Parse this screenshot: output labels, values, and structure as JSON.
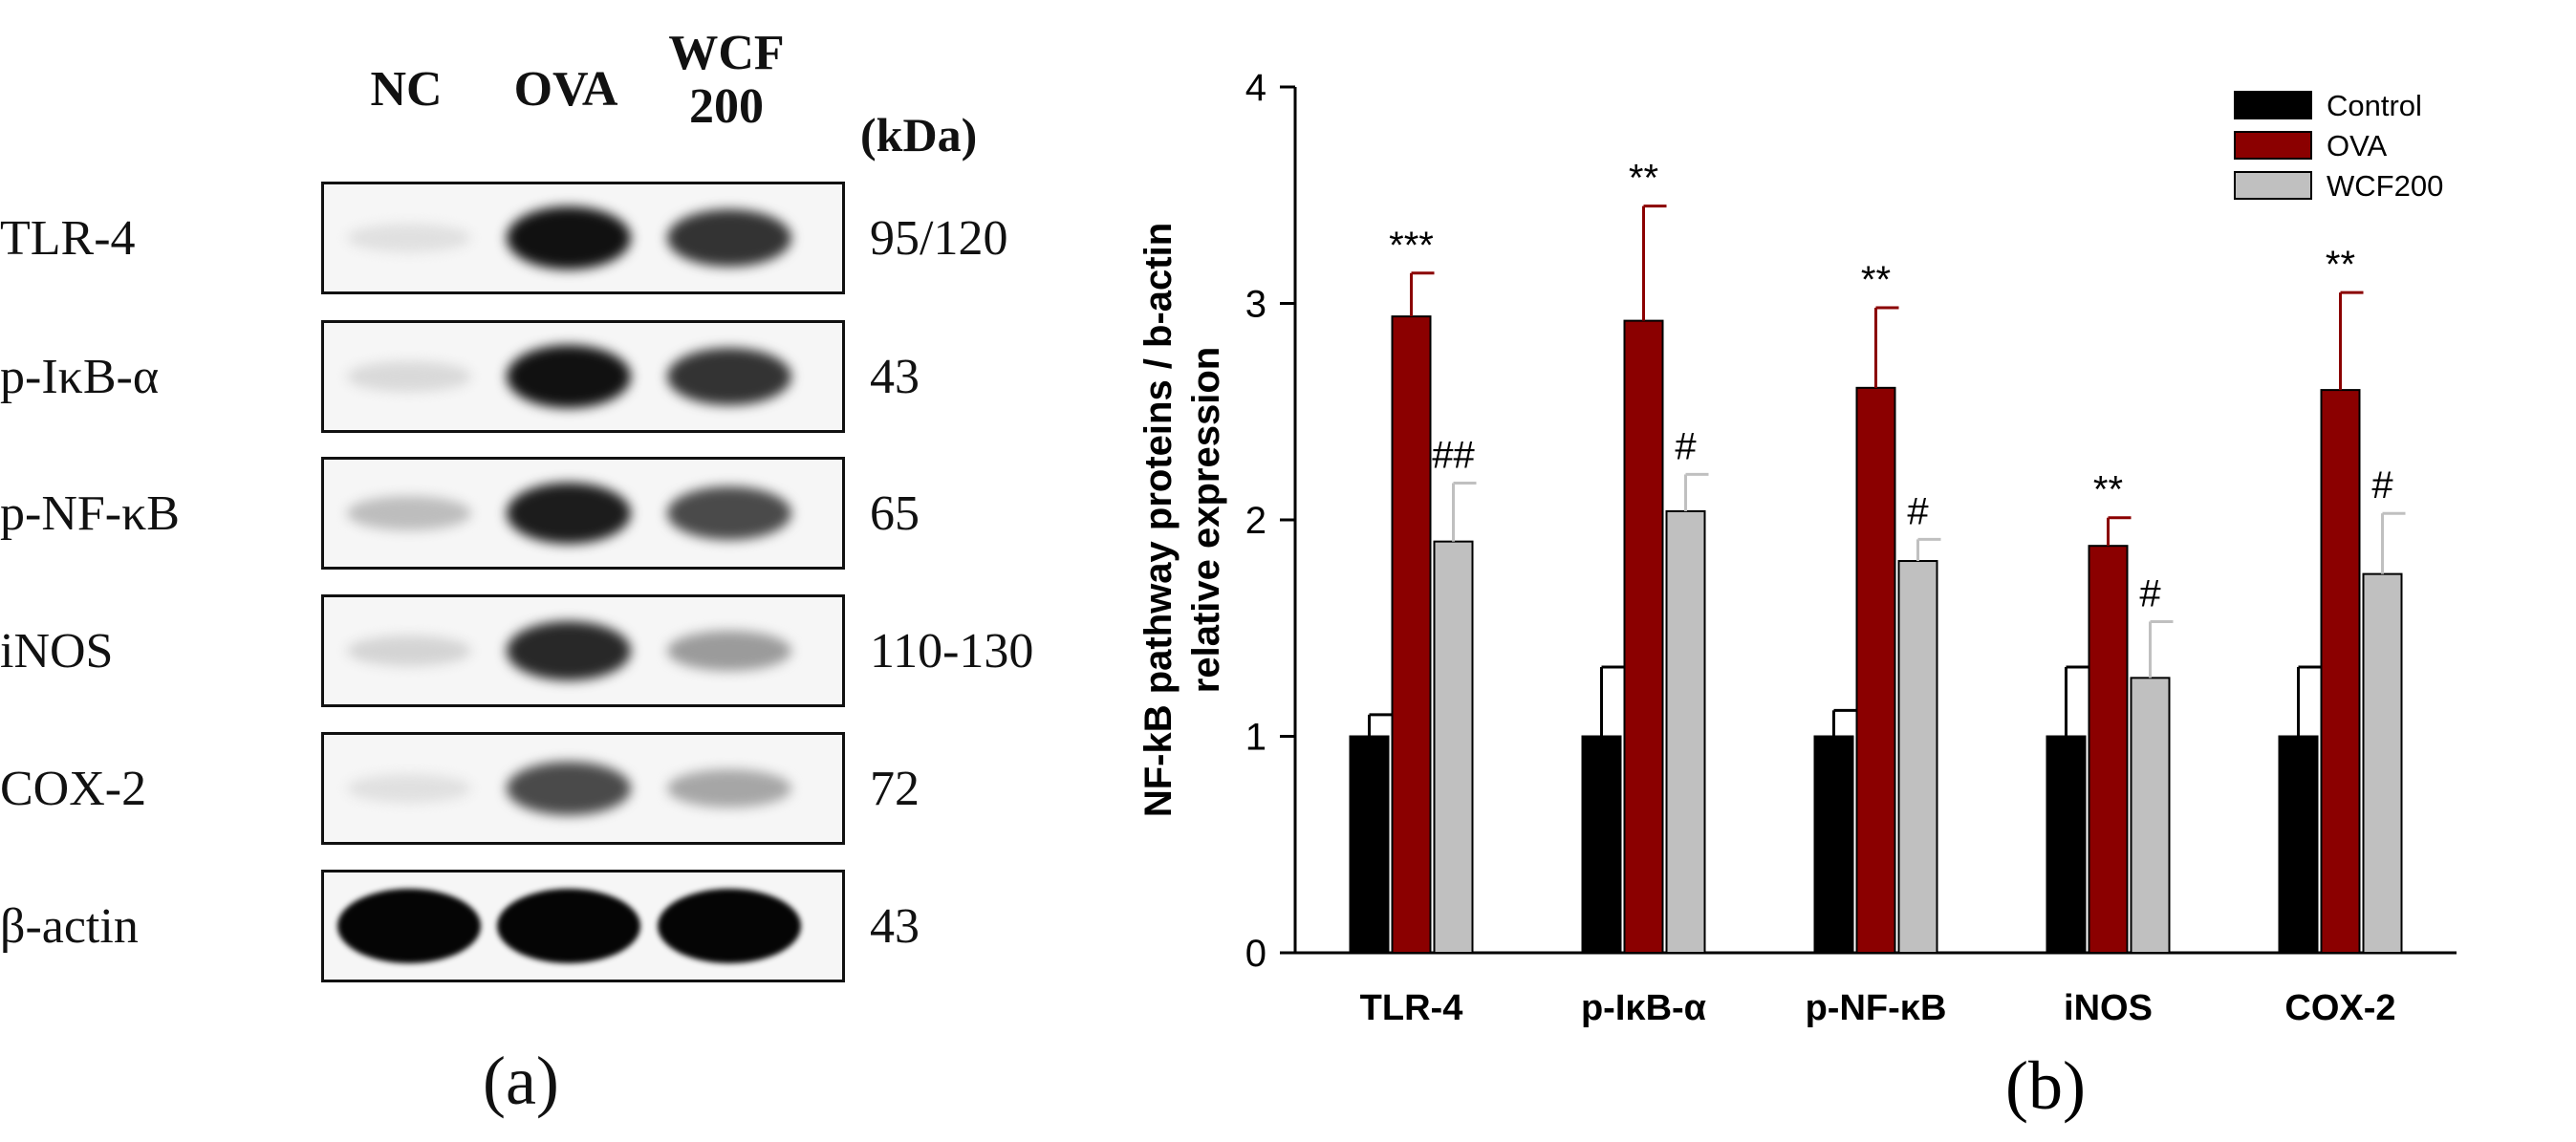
{
  "panel_a": {
    "lanes": [
      {
        "line1": "NC",
        "line2": ""
      },
      {
        "line1": "OVA",
        "line2": ""
      },
      {
        "line1": "WCF",
        "line2": "200"
      }
    ],
    "kda_header": "(kDa)",
    "rows": [
      {
        "protein": "TLR-4",
        "kda": "95/120",
        "intensity": [
          0.05,
          0.95,
          0.8
        ]
      },
      {
        "protein": "p-IκB-α",
        "kda": "43",
        "intensity": [
          0.08,
          0.95,
          0.8
        ]
      },
      {
        "protein": "p-NF-κB",
        "kda": "65",
        "intensity": [
          0.2,
          0.9,
          0.7
        ]
      },
      {
        "protein": "iNOS",
        "kda": "110-130",
        "intensity": [
          0.1,
          0.85,
          0.35
        ]
      },
      {
        "protein": "COX-2",
        "kda": "72",
        "intensity": [
          0.05,
          0.7,
          0.3
        ]
      },
      {
        "protein": "β-actin",
        "kda": "43",
        "intensity": [
          1.0,
          1.0,
          1.0
        ]
      }
    ],
    "caption": "(a)"
  },
  "panel_b_caption": "(b)",
  "chart_data": {
    "type": "bar",
    "categories": [
      "TLR-4",
      "p-IκB-α",
      "p-NF-κB",
      "iNOS",
      "COX-2"
    ],
    "series": [
      {
        "name": "Control",
        "color": "#000000",
        "values": [
          1.0,
          1.0,
          1.0,
          1.0,
          1.0
        ],
        "errors": [
          0.1,
          0.32,
          0.12,
          0.32,
          0.32
        ],
        "annotations": [
          "",
          "",
          "",
          "",
          ""
        ]
      },
      {
        "name": "OVA",
        "color": "#8b0000",
        "values": [
          2.94,
          2.92,
          2.61,
          1.88,
          2.6
        ],
        "errors": [
          0.2,
          0.53,
          0.37,
          0.13,
          0.45
        ],
        "annotations": [
          "***",
          "**",
          "**",
          "**",
          "**"
        ]
      },
      {
        "name": "WCF200",
        "color": "#c0c0c0",
        "values": [
          1.9,
          2.04,
          1.81,
          1.27,
          1.75
        ],
        "errors": [
          0.27,
          0.17,
          0.1,
          0.26,
          0.28
        ],
        "annotations": [
          "##",
          "#",
          "#",
          "#",
          "#"
        ]
      }
    ],
    "ylabel_line1": "NF-kB pathway proteins / b-actin",
    "ylabel_line2": "relative expression",
    "ylim": [
      0,
      4
    ],
    "yticks": [
      0,
      1,
      2,
      3,
      4
    ],
    "legend_position": "top-right",
    "grid": false
  }
}
